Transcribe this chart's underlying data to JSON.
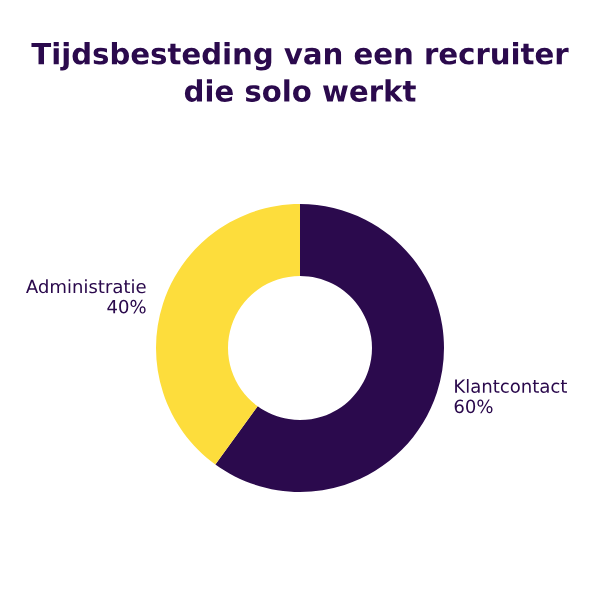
{
  "chart_data": {
    "type": "donut",
    "title": "Tijdsbesteding van een recruiter\ndie solo werkt",
    "categories": [
      "Klantcontact",
      "Administratie"
    ],
    "values": [
      60,
      40
    ],
    "colors": [
      "#2b0a4d",
      "#fddd3c"
    ],
    "value_labels": [
      "60%",
      "40%"
    ],
    "legend": false
  }
}
